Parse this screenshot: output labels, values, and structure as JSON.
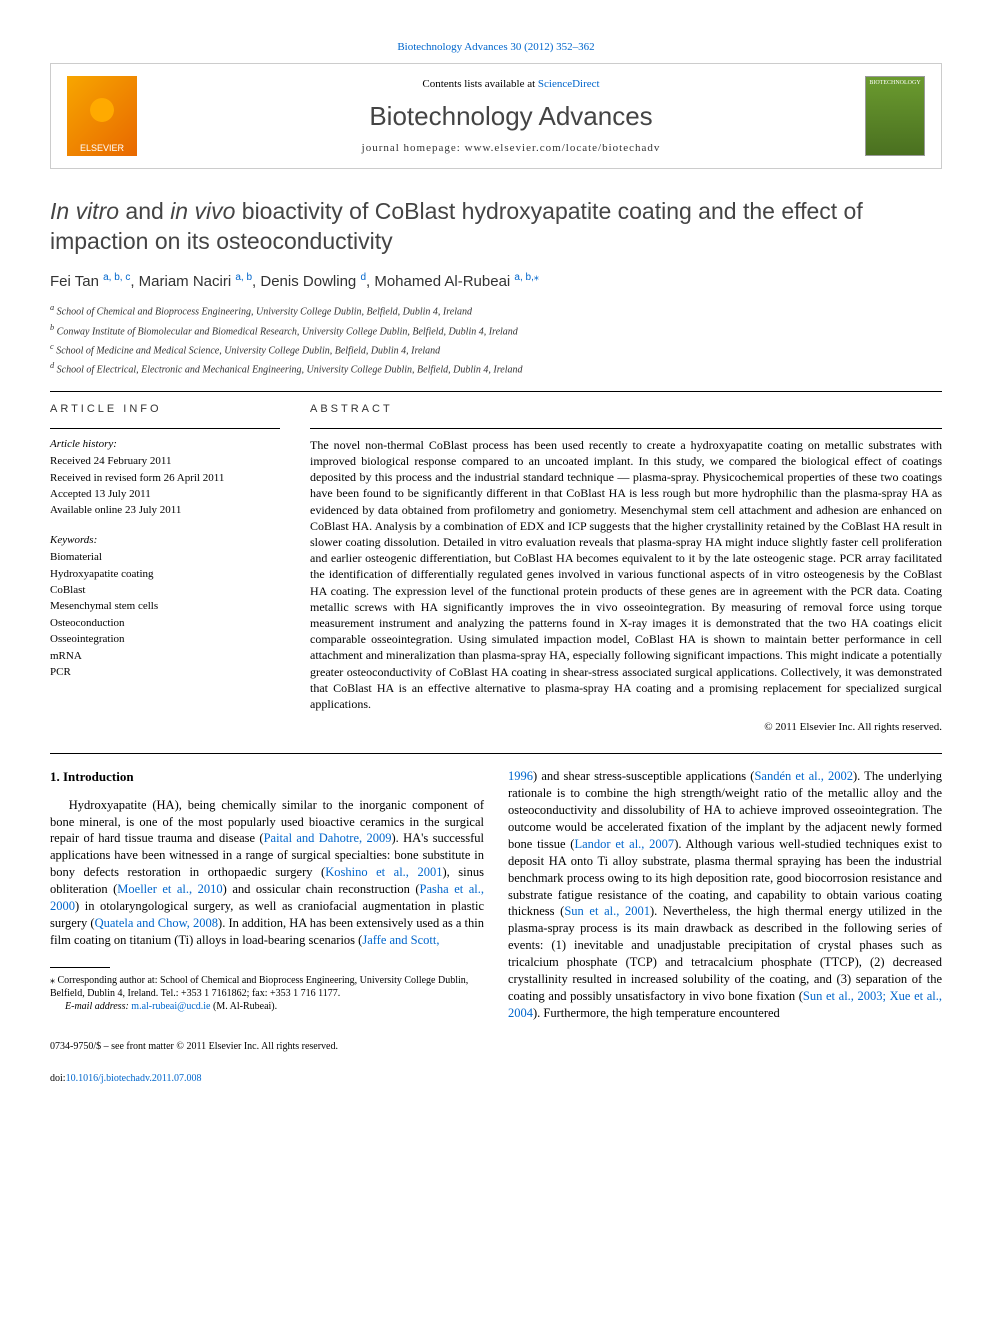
{
  "header": {
    "top_link": "Biotechnology Advances 30 (2012) 352–362",
    "contents_pre": "Contents lists available at ",
    "contents_link": "ScienceDirect",
    "journal_name": "Biotechnology Advances",
    "homepage_pre": "journal homepage: ",
    "homepage_url": "www.elsevier.com/locate/biotechadv",
    "publisher_logo": "ELSEVIER"
  },
  "article": {
    "title_pre": "In vitro",
    "title_mid": " and ",
    "title_italic2": "in vivo",
    "title_rest": " bioactivity of CoBlast hydroxyapatite coating and the effect of impaction on its osteoconductivity",
    "authors": [
      {
        "name": "Fei Tan ",
        "sup": "a, b, c"
      },
      {
        "name": ", Mariam Naciri ",
        "sup": "a, b"
      },
      {
        "name": ", Denis Dowling ",
        "sup": "d"
      },
      {
        "name": ", Mohamed Al-Rubeai ",
        "sup": "a, b,",
        "star": "⁎"
      }
    ],
    "affiliations": [
      {
        "sup": "a",
        "text": " School of Chemical and Bioprocess Engineering, University College Dublin, Belfield, Dublin 4, Ireland"
      },
      {
        "sup": "b",
        "text": " Conway Institute of Biomolecular and Biomedical Research, University College Dublin, Belfield, Dublin 4, Ireland"
      },
      {
        "sup": "c",
        "text": " School of Medicine and Medical Science, University College Dublin, Belfield, Dublin 4, Ireland"
      },
      {
        "sup": "d",
        "text": " School of Electrical, Electronic and Mechanical Engineering, University College Dublin, Belfield, Dublin 4, Ireland"
      }
    ]
  },
  "info": {
    "head": "ARTICLE INFO",
    "history_head": "Article history:",
    "history": [
      "Received 24 February 2011",
      "Received in revised form 26 April 2011",
      "Accepted 13 July 2011",
      "Available online 23 July 2011"
    ],
    "keywords_head": "Keywords:",
    "keywords": [
      "Biomaterial",
      "Hydroxyapatite coating",
      "CoBlast",
      "Mesenchymal stem cells",
      "Osteoconduction",
      "Osseointegration",
      "mRNA",
      "PCR"
    ]
  },
  "abstract": {
    "head": "ABSTRACT",
    "text": "The novel non-thermal CoBlast process has been used recently to create a hydroxyapatite coating on metallic substrates with improved biological response compared to an uncoated implant. In this study, we compared the biological effect of coatings deposited by this process and the industrial standard technique — plasma-spray. Physicochemical properties of these two coatings have been found to be significantly different in that CoBlast HA is less rough but more hydrophilic than the plasma-spray HA as evidenced by data obtained from profilometry and goniometry. Mesenchymal stem cell attachment and adhesion are enhanced on CoBlast HA. Analysis by a combination of EDX and ICP suggests that the higher crystallinity retained by the CoBlast HA result in slower coating dissolution. Detailed in vitro evaluation reveals that plasma-spray HA might induce slightly faster cell proliferation and earlier osteogenic differentiation, but CoBlast HA becomes equivalent to it by the late osteogenic stage. PCR array facilitated the identification of differentially regulated genes involved in various functional aspects of in vitro osteogenesis by the CoBlast HA coating. The expression level of the functional protein products of these genes are in agreement with the PCR data. Coating metallic screws with HA significantly improves the in vivo osseointegration. By measuring of removal force using torque measurement instrument and analyzing the patterns found in X-ray images it is demonstrated that the two HA coatings elicit comparable osseointegration. Using simulated impaction model, CoBlast HA is shown to maintain better performance in cell attachment and mineralization than plasma-spray HA, especially following significant impactions. This might indicate a potentially greater osteoconductivity of CoBlast HA coating in shear-stress associated surgical applications. Collectively, it was demonstrated that CoBlast HA is an effective alternative to plasma-spray HA coating and a promising replacement for specialized surgical applications.",
    "copyright": "© 2011 Elsevier Inc. All rights reserved."
  },
  "body": {
    "section_head": "1. Introduction",
    "col1": {
      "p1_pre": "Hydroxyapatite (HA), being chemically similar to the inorganic component of bone mineral, is one of the most popularly used bioactive ceramics in the surgical repair of hard tissue trauma and disease (",
      "p1_link1": "Paital and Dahotre, 2009",
      "p1_mid1": "). HA's successful applications have been witnessed in a range of surgical specialties: bone substitute in bony defects restoration in orthopaedic surgery (",
      "p1_link2": "Koshino et al., 2001",
      "p1_mid2": "), sinus obliteration (",
      "p1_link3": "Moeller et al., 2010",
      "p1_mid3": ") and ossicular chain reconstruction (",
      "p1_link4": "Pasha et al., 2000",
      "p1_mid4": ") in otolaryngological surgery, as well as craniofacial augmentation in plastic surgery (",
      "p1_link5": "Quatela and Chow, 2008",
      "p1_mid5": "). In addition, HA has been extensively used as a thin film coating on titanium (Ti) alloys in load-bearing scenarios (",
      "p1_link6": "Jaffe and Scott,"
    },
    "col2": {
      "p1_link1": "1996",
      "p1_mid1": ") and shear stress-susceptible applications (",
      "p1_link2": "Sandén et al., 2002",
      "p1_mid2": "). The underlying rationale is to combine the high strength/weight ratio of the metallic alloy and the osteoconductivity and dissolubility of HA to achieve improved osseointegration. The outcome would be accelerated fixation of the implant by the adjacent newly formed bone tissue (",
      "p1_link3": "Landor et al., 2007",
      "p1_mid3": "). Although various well-studied techniques exist to deposit HA onto Ti alloy substrate, plasma thermal spraying has been the industrial benchmark process owing to its high deposition rate, good biocorrosion resistance and substrate fatigue resistance of the coating, and capability to obtain various coating thickness (",
      "p1_link4": "Sun et al., 2001",
      "p1_mid4": "). Nevertheless, the high thermal energy utilized in the plasma-spray process is its main drawback as described in the following series of events: (1) inevitable and unadjustable precipitation of crystal phases such as tricalcium phosphate (TCP) and tetracalcium phosphate (TTCP), (2) decreased crystallinity resulted in increased solubility of the coating, and (3) separation of the coating and possibly unsatisfactory in vivo bone fixation (",
      "p1_link5": "Sun et al., 2003; Xue et al., 2004",
      "p1_mid5": "). Furthermore, the high temperature encountered"
    }
  },
  "footnote": {
    "corr": "⁎ Corresponding author at: School of Chemical and Bioprocess Engineering, University College Dublin, Belfield, Dublin 4, Ireland. Tel.: +353 1 7161862; fax: +353 1 716 1177.",
    "email_pre": "E-mail address: ",
    "email": "m.al-rubeai@ucd.ie",
    "email_post": " (M. Al-Rubeai)."
  },
  "footer": {
    "issn": "0734-9750/$ – see front matter © 2011 Elsevier Inc. All rights reserved.",
    "doi_pre": "doi:",
    "doi": "10.1016/j.biotechadv.2011.07.008"
  },
  "colors": {
    "link": "#0066cc",
    "text": "#000000",
    "header_gray": "#444444"
  }
}
